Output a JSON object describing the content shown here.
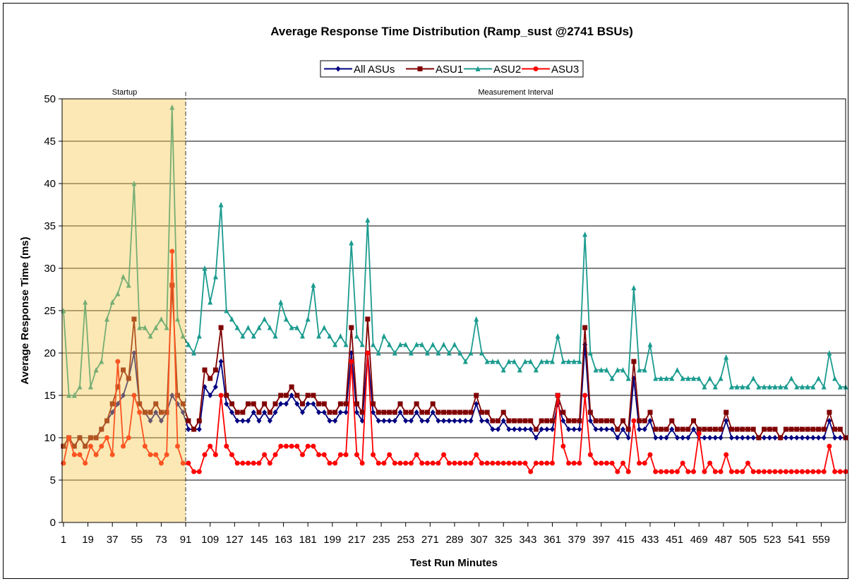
{
  "chart_data": {
    "type": "line",
    "title": "Average Response Time Distribution (Ramp_sust @2741 BSUs)",
    "x_label": "Test Run Minutes",
    "y_label": "Average Response Time (ms)",
    "xlim": [
      0,
      577
    ],
    "ylim": [
      0,
      50
    ],
    "xticks": [
      1,
      19,
      37,
      55,
      73,
      91,
      109,
      127,
      145,
      163,
      181,
      199,
      217,
      235,
      253,
      271,
      289,
      307,
      325,
      343,
      361,
      379,
      397,
      415,
      433,
      451,
      469,
      487,
      505,
      523,
      541,
      559
    ],
    "yticks": [
      0,
      5,
      10,
      15,
      20,
      25,
      30,
      35,
      40,
      45,
      50
    ],
    "grid": true,
    "legend": "top",
    "regions": [
      {
        "label": "Startup",
        "from": 1,
        "to": 91,
        "color": "#f5c94e"
      },
      {
        "label": "Measurement Interval",
        "from": 91,
        "to": 577
      }
    ],
    "x": [
      1,
      5,
      9,
      13,
      17,
      21,
      25,
      29,
      33,
      37,
      41,
      45,
      49,
      53,
      57,
      61,
      65,
      69,
      73,
      77,
      81,
      85,
      89,
      93,
      97,
      101,
      105,
      109,
      113,
      117,
      121,
      125,
      129,
      133,
      137,
      141,
      145,
      149,
      153,
      157,
      161,
      165,
      169,
      173,
      177,
      181,
      185,
      189,
      193,
      197,
      201,
      205,
      209,
      213,
      217,
      221,
      225,
      229,
      233,
      237,
      241,
      245,
      249,
      253,
      257,
      261,
      265,
      269,
      273,
      277,
      281,
      285,
      289,
      293,
      297,
      301,
      305,
      309,
      313,
      317,
      321,
      325,
      329,
      333,
      337,
      341,
      345,
      349,
      353,
      357,
      361,
      365,
      369,
      373,
      377,
      381,
      385,
      389,
      393,
      397,
      401,
      405,
      409,
      413,
      417,
      421,
      425,
      429,
      433,
      437,
      441,
      445,
      449,
      453,
      457,
      461,
      465,
      469,
      473,
      477,
      481,
      485,
      489,
      493,
      497,
      501,
      505,
      509,
      513,
      517,
      521,
      525,
      529,
      533,
      537,
      541,
      545,
      549,
      553,
      557,
      561,
      565,
      569,
      573,
      577
    ],
    "series": [
      {
        "name": "All ASUs",
        "color": "#000080",
        "marker": "diamond",
        "values": [
          9,
          10,
          9,
          10,
          9,
          10,
          10,
          11,
          12,
          13,
          14,
          15,
          17,
          20,
          14,
          13,
          12,
          13,
          12,
          13,
          15,
          14,
          13,
          11,
          11,
          11,
          16,
          15,
          16,
          19,
          14,
          13,
          12,
          12,
          12,
          13,
          12,
          13,
          12,
          13,
          14,
          14,
          15,
          14,
          13,
          14,
          14,
          13,
          13,
          12,
          12,
          13,
          13,
          20,
          13,
          12,
          20,
          13,
          12,
          12,
          12,
          12,
          13,
          12,
          12,
          13,
          12,
          12,
          13,
          12,
          12,
          12,
          12,
          12,
          12,
          12,
          14,
          12,
          12,
          11,
          11,
          12,
          11,
          11,
          11,
          11,
          11,
          10,
          11,
          11,
          11,
          14,
          12,
          11,
          11,
          11,
          21,
          12,
          11,
          11,
          11,
          11,
          10,
          11,
          10,
          17,
          11,
          11,
          12,
          10,
          10,
          10,
          11,
          10,
          10,
          10,
          11,
          10,
          10,
          10,
          10,
          10,
          12,
          10,
          10,
          10,
          10,
          10,
          10,
          10,
          10,
          10,
          10,
          10,
          10,
          10,
          10,
          10,
          10,
          10,
          10,
          12,
          10,
          10,
          10
        ]
      },
      {
        "name": "ASU1",
        "color": "#800000",
        "marker": "square",
        "values": [
          9,
          10,
          9,
          10,
          9,
          10,
          10,
          11,
          12,
          14,
          16,
          18,
          17,
          24,
          14,
          13,
          13,
          14,
          13,
          13,
          28,
          15,
          14,
          12,
          11,
          12,
          18,
          17,
          18,
          23,
          15,
          14,
          13,
          13,
          14,
          14,
          13,
          14,
          13,
          14,
          15,
          15,
          16,
          15,
          14,
          15,
          15,
          14,
          14,
          13,
          13,
          14,
          14,
          23,
          14,
          13,
          24,
          14,
          13,
          13,
          13,
          13,
          14,
          13,
          13,
          14,
          13,
          13,
          14,
          13,
          13,
          13,
          13,
          13,
          13,
          13,
          15,
          13,
          13,
          12,
          12,
          13,
          12,
          12,
          12,
          12,
          12,
          11,
          12,
          12,
          12,
          15,
          13,
          12,
          12,
          12,
          23,
          13,
          12,
          12,
          12,
          12,
          11,
          12,
          11,
          19,
          12,
          12,
          13,
          11,
          11,
          11,
          12,
          11,
          11,
          11,
          12,
          11,
          11,
          11,
          11,
          11,
          13,
          11,
          11,
          11,
          11,
          11,
          10,
          11,
          11,
          11,
          10,
          11,
          11,
          11,
          11,
          11,
          11,
          11,
          11,
          13,
          11,
          11,
          10
        ]
      },
      {
        "name": "ASU2",
        "color": "#1b9b8f",
        "marker": "triangle",
        "values": [
          25,
          15,
          15,
          16,
          26,
          16,
          18,
          19,
          24,
          26,
          27,
          29,
          28,
          40,
          23,
          23,
          22,
          23,
          24,
          23,
          49,
          24,
          22,
          21,
          20,
          22,
          30,
          26,
          29,
          37.5,
          25,
          24,
          23,
          22,
          23,
          22,
          23,
          24,
          23,
          22,
          26,
          24,
          23,
          23,
          22,
          24,
          28,
          22,
          23,
          22,
          21,
          22,
          21,
          33,
          22,
          21,
          35.7,
          21,
          20,
          22,
          21,
          20,
          21,
          21,
          20,
          21,
          21,
          20,
          21,
          20,
          21,
          20,
          21,
          20,
          19,
          20,
          24,
          20,
          19,
          19,
          19,
          18,
          19,
          19,
          18,
          19,
          19,
          18,
          19,
          19,
          19,
          22,
          19,
          19,
          19,
          19,
          34,
          20,
          18,
          18,
          18,
          17,
          18,
          18,
          17,
          27.7,
          18,
          18,
          21,
          17,
          17,
          17,
          17,
          18,
          17,
          17,
          17,
          17,
          16,
          17,
          16,
          17,
          19.5,
          16,
          16,
          16,
          16,
          17,
          16,
          16,
          16,
          16,
          16,
          16,
          17,
          16,
          16,
          16,
          16,
          17,
          16,
          20,
          17,
          16,
          16
        ]
      },
      {
        "name": "ASU3",
        "color": "#ff0000",
        "marker": "circle",
        "values": [
          7,
          10,
          8,
          8,
          7,
          9,
          8,
          9,
          10,
          8,
          19,
          9,
          10,
          15,
          13,
          9,
          8,
          8,
          7,
          8,
          32,
          9,
          7,
          7,
          6,
          6,
          8,
          9,
          8,
          15,
          9,
          8,
          7,
          7,
          7,
          7,
          7,
          8,
          7,
          8,
          9,
          9,
          9,
          9,
          8,
          9,
          9,
          8,
          8,
          7,
          7,
          8,
          8,
          19,
          8,
          7,
          20,
          8,
          7,
          7,
          8,
          7,
          7,
          7,
          7,
          8,
          7,
          7,
          7,
          7,
          8,
          7,
          7,
          7,
          7,
          7,
          8,
          7,
          7,
          7,
          7,
          7,
          7,
          7,
          7,
          7,
          6,
          7,
          7,
          7,
          7,
          15,
          9,
          7,
          7,
          7,
          15,
          8,
          7,
          7,
          7,
          7,
          6,
          7,
          6,
          12,
          7,
          7,
          8,
          6,
          6,
          6,
          6,
          6,
          7,
          6,
          6,
          10.5,
          6,
          7,
          6,
          6,
          8,
          6,
          6,
          6,
          7,
          6,
          6,
          6,
          6,
          6,
          6,
          6,
          6,
          6,
          6,
          6,
          6,
          6,
          6,
          9,
          6,
          6,
          6
        ]
      }
    ]
  }
}
